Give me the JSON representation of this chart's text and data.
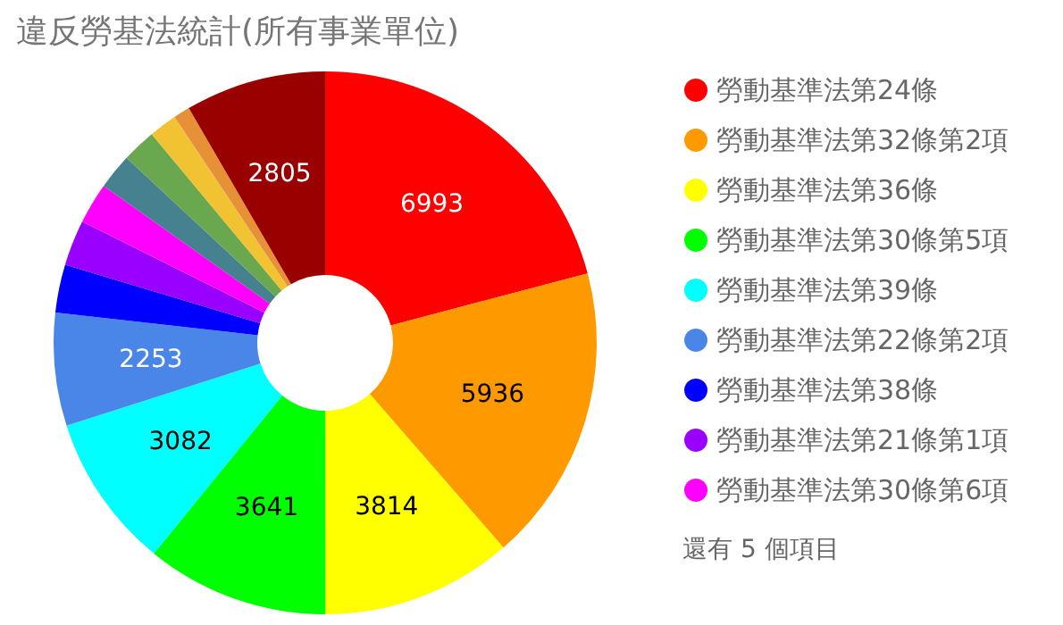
{
  "chart_data": {
    "type": "donut",
    "title": "違反勞基法統計(所有事業單位)",
    "categories": [
      "勞動基準法第24條",
      "勞動基準法第32條第2項",
      "勞動基準法第36條",
      "勞動基準法第30條第5項",
      "勞動基準法第39條",
      "勞動基準法第22條第2項",
      "勞動基準法第38條",
      "勞動基準法第21條第1項",
      "勞動基準法第30條第6項",
      null,
      null,
      null,
      null,
      null
    ],
    "values": [
      6993,
      5936,
      3814,
      3641,
      3082,
      2253,
      960,
      910,
      820,
      710,
      680,
      560,
      330,
      2805
    ],
    "value_labels": [
      "6993",
      "5936",
      "3814",
      "3641",
      "3082",
      "2253",
      null,
      null,
      null,
      null,
      null,
      null,
      null,
      "2805"
    ],
    "colors": [
      "#ff0000",
      "#ff9900",
      "#ffff00",
      "#00ff00",
      "#00ffff",
      "#4a86e8",
      "#0000ff",
      "#9900ff",
      "#ff00ff",
      "#45818e",
      "#6aa84f",
      "#f1c232",
      "#e69138",
      "#990000"
    ],
    "legend": "right",
    "annotations": [
      "還有 5 個項目"
    ]
  }
}
